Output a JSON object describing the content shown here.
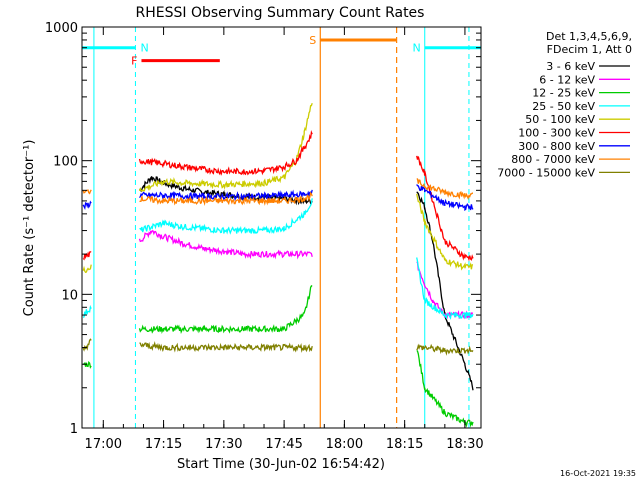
{
  "chart_data": {
    "type": "line",
    "title": "RHESSI Observing Summary Count Rates",
    "xlabel": "Start Time (30-Jun-02 16:54:42)",
    "ylabel": "Count Rate (s⁻¹ detector⁻¹)",
    "xlim": [
      "16:54:42",
      "18:34:00"
    ],
    "ylim": [
      1,
      1000
    ],
    "yscale": "log",
    "x_ticks": [
      "17:00",
      "17:15",
      "17:30",
      "17:45",
      "18:00",
      "18:15",
      "18:30"
    ],
    "y_ticks": [
      "1",
      "10",
      "100",
      "1000"
    ],
    "footer": "16-Oct-2021 19:35",
    "legend_header": [
      "Det 1,3,4,5,6,9,",
      "FDecim 1, Att 0"
    ],
    "legend_position": "right",
    "background": "#ffffff",
    "data_gaps": [
      [
        "16:57:40",
        "17:09:00"
      ],
      [
        "17:52:10",
        "18:17:50"
      ]
    ],
    "series": [
      {
        "name": "3 - 6 keV",
        "color": "#000000",
        "x": [
          "17:09",
          "17:12",
          "17:15",
          "17:20",
          "17:25",
          "17:30",
          "17:35",
          "17:40",
          "17:45",
          "17:50",
          "17:52",
          "18:18",
          "18:20",
          "18:22",
          "18:25",
          "18:30",
          "18:32"
        ],
        "y": [
          60,
          75,
          68,
          62,
          58,
          56,
          54,
          53,
          52,
          50,
          50,
          60,
          45,
          25,
          7,
          3,
          2
        ]
      },
      {
        "name": "6 - 12 keV",
        "color": "#ff00ff",
        "x": [
          "17:09",
          "17:12",
          "17:15",
          "17:20",
          "17:25",
          "17:30",
          "17:35",
          "17:40",
          "17:45",
          "17:50",
          "17:52",
          "18:18",
          "18:20",
          "18:22",
          "18:25",
          "18:30",
          "18:32"
        ],
        "y": [
          25,
          30,
          27,
          24,
          22,
          21,
          20,
          20,
          20,
          20,
          20,
          17,
          12,
          9,
          7,
          7,
          7
        ]
      },
      {
        "name": "12 - 25 keV",
        "color": "#00cc00",
        "x": [
          "16:55",
          "16:57",
          "17:09",
          "17:15",
          "17:25",
          "17:35",
          "17:45",
          "17:50",
          "17:52",
          "18:18",
          "18:20",
          "18:25",
          "18:30",
          "18:32"
        ],
        "y": [
          3,
          3,
          5.5,
          5.5,
          5.5,
          5.5,
          5.5,
          7,
          12,
          4,
          2,
          1.3,
          1.1,
          1.1
        ]
      },
      {
        "name": "25 - 50 keV",
        "color": "#00ffff",
        "x": [
          "16:55",
          "16:57",
          "17:09",
          "17:15",
          "17:20",
          "17:30",
          "17:40",
          "17:45",
          "17:50",
          "17:52",
          "18:18",
          "18:20",
          "18:25",
          "18:30",
          "18:32"
        ],
        "y": [
          7,
          8,
          30,
          34,
          32,
          30,
          30,
          31,
          40,
          50,
          18,
          9,
          7,
          7,
          7
        ]
      },
      {
        "name": "50 - 100 keV",
        "color": "#cccc00",
        "x": [
          "16:55",
          "16:57",
          "17:09",
          "17:15",
          "17:20",
          "17:30",
          "17:40",
          "17:45",
          "17:48",
          "17:50",
          "17:52",
          "18:18",
          "18:20",
          "18:25",
          "18:30",
          "18:32"
        ],
        "y": [
          15,
          16,
          60,
          70,
          68,
          66,
          68,
          75,
          100,
          160,
          280,
          55,
          35,
          18,
          16,
          16
        ]
      },
      {
        "name": "100 - 300 keV",
        "color": "#ff0000",
        "x": [
          "16:55",
          "16:57",
          "17:09",
          "17:15",
          "17:20",
          "17:25",
          "17:30",
          "17:35",
          "17:40",
          "17:45",
          "17:48",
          "17:50",
          "17:52",
          "18:18",
          "18:20",
          "18:25",
          "18:30",
          "18:32"
        ],
        "y": [
          19,
          20,
          100,
          95,
          90,
          86,
          83,
          83,
          84,
          90,
          100,
          125,
          160,
          110,
          80,
          25,
          19,
          19
        ]
      },
      {
        "name": "300 - 800 keV",
        "color": "#0000ff",
        "x": [
          "16:55",
          "16:57",
          "17:09",
          "17:15",
          "17:25",
          "17:35",
          "17:45",
          "17:50",
          "17:52",
          "18:18",
          "18:20",
          "18:25",
          "18:30",
          "18:32"
        ],
        "y": [
          45,
          48,
          55,
          55,
          54,
          54,
          55,
          56,
          58,
          65,
          60,
          48,
          45,
          45
        ]
      },
      {
        "name": "800 - 7000 keV",
        "color": "#ff8000",
        "x": [
          "16:55",
          "16:57",
          "17:09",
          "17:15",
          "17:25",
          "17:35",
          "17:45",
          "17:50",
          "17:52",
          "18:18",
          "18:20",
          "18:25",
          "18:30",
          "18:32"
        ],
        "y": [
          57,
          60,
          52,
          50,
          50,
          50,
          50,
          52,
          55,
          70,
          65,
          58,
          55,
          55
        ]
      },
      {
        "name": "7000 - 15000 keV",
        "color": "#808000",
        "x": [
          "16:55",
          "16:57",
          "17:09",
          "17:15",
          "17:25",
          "17:35",
          "17:45",
          "17:50",
          "17:52",
          "18:18",
          "18:20",
          "18:25",
          "18:30",
          "18:32"
        ],
        "y": [
          3.8,
          4.5,
          4.2,
          4.0,
          4.0,
          4.0,
          4.0,
          4.0,
          4.0,
          4.0,
          4.0,
          3.8,
          3.8,
          3.8
        ]
      }
    ],
    "annotations": [
      {
        "label": "N",
        "color": "#00ffff",
        "x_start": "16:54:42",
        "x_end": "17:08:00",
        "y": 700,
        "style": "solid",
        "marker_line_x": "17:08:00",
        "marker_style": "dashed"
      },
      {
        "label": "N",
        "color": "#00ffff",
        "x_start": "18:20:00",
        "x_end": "18:34:00",
        "y": 700,
        "style": "solid",
        "marker_line_x": "18:31:00",
        "marker_style": "dashed"
      },
      {
        "label": "F",
        "color": "#ff0000",
        "x_start": "17:09:30",
        "x_end": "17:29:00",
        "y": 560,
        "style": "solid"
      },
      {
        "label": "S",
        "color": "#ff8000",
        "x_start": "17:54:00",
        "x_end": "18:13:00",
        "y": 800,
        "style": "solid",
        "bracket_lines": [
          {
            "x": "17:54:00",
            "style": "solid"
          },
          {
            "x": "18:13:00",
            "style": "dashed"
          }
        ]
      }
    ]
  }
}
